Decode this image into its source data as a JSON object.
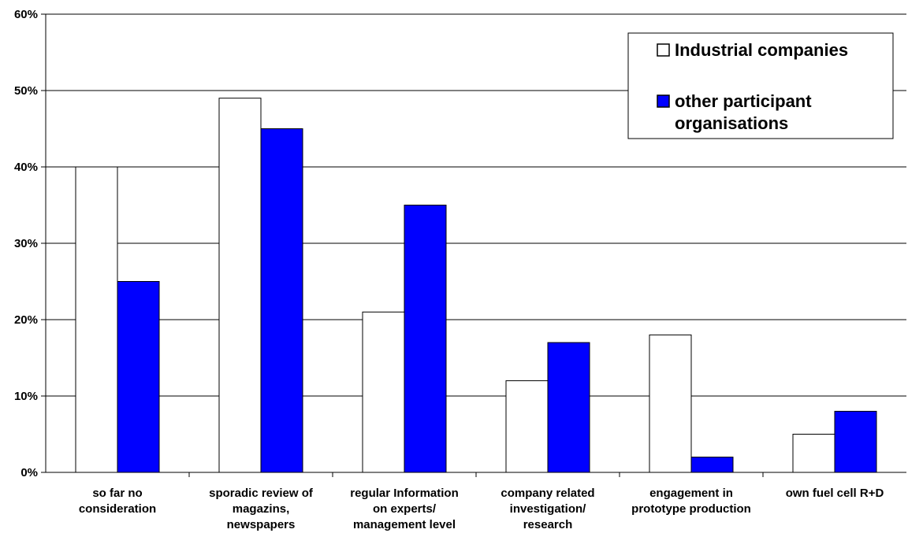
{
  "chart_data": {
    "type": "bar",
    "categories": [
      [
        "so far no",
        "consideration"
      ],
      [
        "sporadic review of",
        "magazins,",
        "newspapers"
      ],
      [
        "regular Information",
        "on experts/",
        "management level"
      ],
      [
        "company related",
        "investigation/",
        "research"
      ],
      [
        "engagement in",
        "prototype production"
      ],
      [
        "own fuel cell R+D"
      ]
    ],
    "series": [
      {
        "name": "Industrial companies",
        "color": "#ffffff",
        "values": [
          40,
          49,
          21,
          12,
          18,
          5
        ]
      },
      {
        "name": "other participant organisations",
        "color": "#0000ff",
        "values": [
          25,
          45,
          35,
          17,
          2,
          8
        ]
      }
    ],
    "y_tick_labels": [
      "0%",
      "10%",
      "20%",
      "30%",
      "40%",
      "50%",
      "60%"
    ],
    "ylim": [
      0,
      60
    ],
    "grid": true,
    "legend_position": "top-right",
    "legend_lines": [
      [
        "Industrial companies"
      ],
      [
        "other participant",
        "organisations"
      ]
    ],
    "title": "",
    "xlabel": "",
    "ylabel": ""
  }
}
